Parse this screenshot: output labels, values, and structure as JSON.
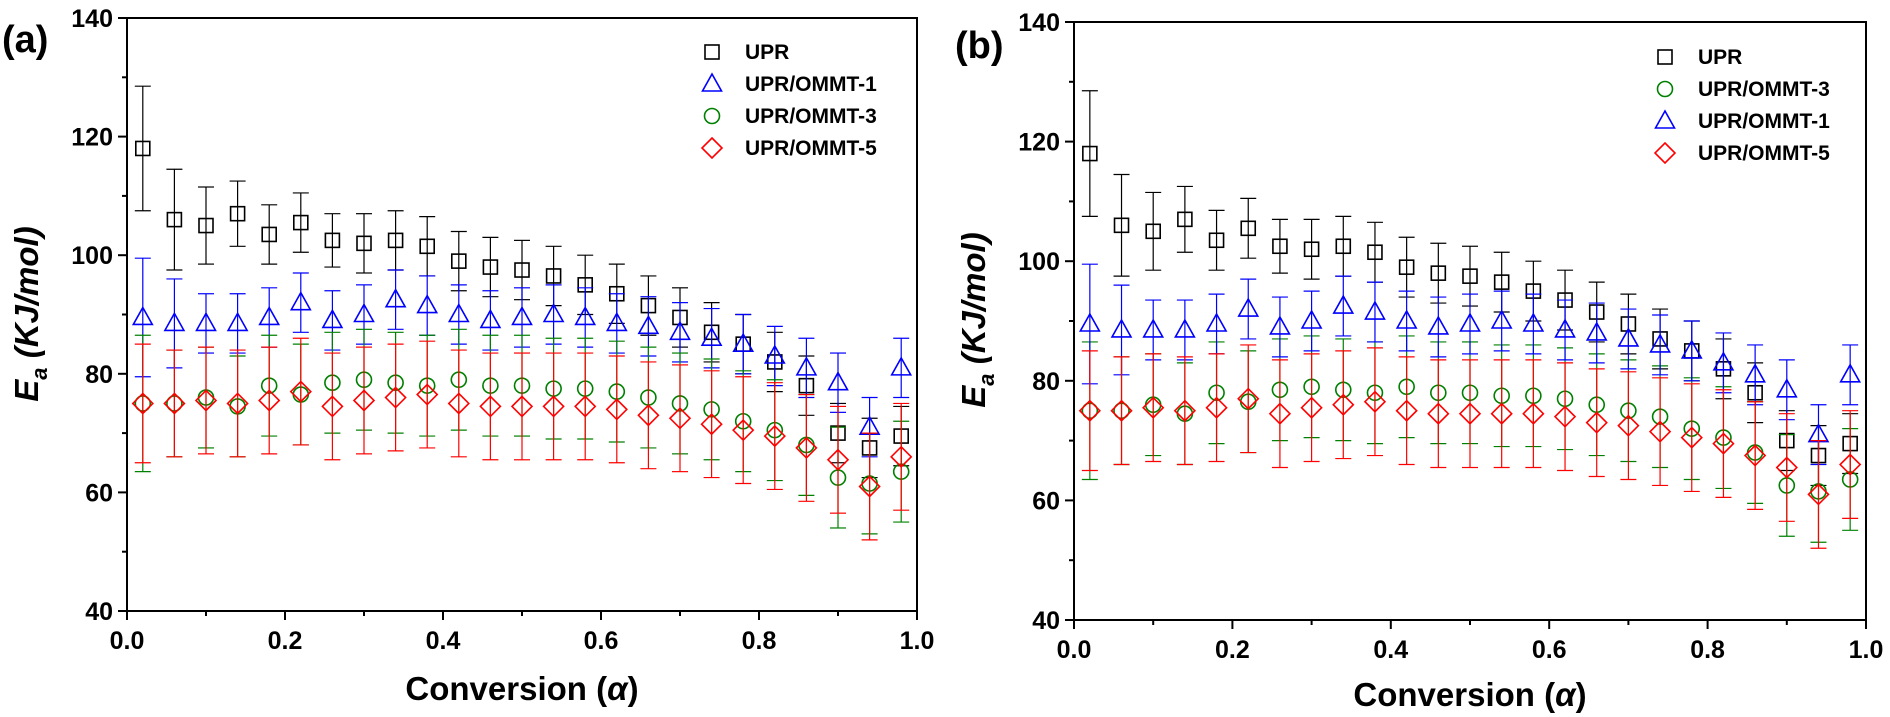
{
  "chart_data": [
    {
      "type": "scatter",
      "panel_label": "(a)",
      "xlabel": "Conversion (α)",
      "ylabel": "Ea (KJ/mol)",
      "xlim": [
        0,
        1
      ],
      "ylim": [
        40,
        140
      ],
      "xticks": [
        0.0,
        0.2,
        0.4,
        0.6,
        0.8,
        1.0
      ],
      "xtick_labels": [
        "0.0",
        "0.2",
        "0.4",
        "0.6",
        "0.8",
        "1.0"
      ],
      "yticks": [
        40,
        60,
        80,
        100,
        120,
        140
      ],
      "ytick_labels": [
        "40",
        "60",
        "80",
        "100",
        "120",
        "140"
      ],
      "grid": false,
      "legend": "top-right",
      "x": [
        0.02,
        0.06,
        0.1,
        0.14,
        0.18,
        0.22,
        0.26,
        0.3,
        0.34,
        0.38,
        0.42,
        0.46,
        0.5,
        0.54,
        0.58,
        0.62,
        0.66,
        0.7,
        0.74,
        0.78,
        0.82,
        0.86,
        0.9,
        0.94,
        0.98
      ],
      "series": [
        {
          "name": "UPR",
          "marker": "square",
          "color": "#000000",
          "values": [
            118,
            106,
            105,
            107,
            103.5,
            105.5,
            102.5,
            102,
            102.5,
            101.5,
            99,
            98,
            97.5,
            96.5,
            95,
            93.5,
            91.5,
            89.5,
            87,
            85,
            82,
            78,
            70,
            67.5,
            69.5
          ],
          "errors": [
            10.5,
            8.5,
            6.5,
            5.5,
            5,
            5,
            4.5,
            5,
            5,
            5,
            5,
            5,
            5,
            5,
            5,
            5,
            5,
            5,
            5,
            5,
            5,
            5,
            5,
            5,
            5
          ]
        },
        {
          "name": "UPR/OMMT-1",
          "marker": "triangle",
          "color": "#0000ff",
          "values": [
            89.5,
            88.5,
            88.5,
            88.5,
            89.5,
            92,
            89,
            90,
            92.5,
            91.5,
            90,
            89,
            89.5,
            90,
            89.5,
            88.5,
            88,
            87,
            86,
            85,
            83,
            81,
            78.5,
            71,
            81
          ],
          "errors": [
            10,
            7.5,
            5,
            5,
            5,
            5,
            5,
            5,
            5,
            5,
            5,
            5,
            5,
            5,
            5,
            5,
            5,
            5,
            5,
            5,
            5,
            5,
            5,
            5,
            5
          ]
        },
        {
          "name": "UPR/OMMT-3",
          "marker": "circle",
          "color": "#008000",
          "values": [
            75,
            75,
            76,
            74.5,
            78,
            76.5,
            78.5,
            79,
            78.5,
            78,
            79,
            78,
            78,
            77.5,
            77.5,
            77,
            76,
            75,
            74,
            72,
            70.5,
            68,
            62.5,
            61.5,
            63.5
          ],
          "errors": [
            11.5,
            9,
            8.5,
            8.5,
            8.5,
            8.5,
            8.5,
            8.5,
            8.5,
            8.5,
            8.5,
            8.5,
            8.5,
            8.5,
            8.5,
            8.5,
            8.5,
            8.5,
            8.5,
            8.5,
            8.5,
            8.5,
            8.5,
            8.5,
            8.5
          ]
        },
        {
          "name": "UPR/OMMT-5",
          "marker": "diamond",
          "color": "#ff0000",
          "values": [
            75,
            75,
            75.5,
            75,
            75.5,
            77,
            74.5,
            75.5,
            76,
            76.5,
            75,
            74.5,
            74.5,
            74.5,
            74.5,
            74,
            73,
            72.5,
            71.5,
            70.5,
            69.5,
            67.5,
            65.5,
            61,
            66
          ],
          "errors": [
            10,
            9,
            9,
            9,
            9,
            9,
            9,
            9,
            9,
            9,
            9,
            9,
            9,
            9,
            9,
            9,
            9,
            9,
            9,
            9,
            9,
            9,
            9,
            9,
            9
          ]
        }
      ]
    },
    {
      "type": "scatter",
      "panel_label": "(b)",
      "xlabel": "Conversion (α)",
      "ylabel": "Ea (KJ/mol)",
      "xlim": [
        0,
        1
      ],
      "ylim": [
        40,
        140
      ],
      "xticks": [
        0.0,
        0.2,
        0.4,
        0.6,
        0.8,
        1.0
      ],
      "xtick_labels": [
        "0.0",
        "0.2",
        "0.4",
        "0.6",
        "0.8",
        "1.0"
      ],
      "yticks": [
        40,
        60,
        80,
        100,
        120,
        140
      ],
      "ytick_labels": [
        "40",
        "60",
        "80",
        "100",
        "120",
        "140"
      ],
      "grid": false,
      "legend": "top-right",
      "x": [
        0.02,
        0.06,
        0.1,
        0.14,
        0.18,
        0.22,
        0.26,
        0.3,
        0.34,
        0.38,
        0.42,
        0.46,
        0.5,
        0.54,
        0.58,
        0.62,
        0.66,
        0.7,
        0.74,
        0.78,
        0.82,
        0.86,
        0.9,
        0.94,
        0.98
      ],
      "series": [
        {
          "name": "UPR",
          "marker": "square",
          "color": "#000000",
          "values": [
            118,
            106,
            105,
            107,
            103.5,
            105.5,
            102.5,
            102,
            102.5,
            101.5,
            99,
            98,
            97.5,
            96.5,
            95,
            93.5,
            91.5,
            89.5,
            87,
            85,
            82,
            78,
            70,
            67.5,
            69.5
          ],
          "errors": [
            10.5,
            8.5,
            6.5,
            5.5,
            5,
            5,
            4.5,
            5,
            5,
            5,
            5,
            5,
            5,
            5,
            5,
            5,
            5,
            5,
            5,
            5,
            5,
            5,
            5,
            5,
            5
          ]
        },
        {
          "name": "UPR/OMMT-3",
          "marker": "circle",
          "color": "#008000",
          "values": [
            75,
            75,
            76,
            74.5,
            78,
            76.5,
            78.5,
            79,
            78.5,
            78,
            79,
            78,
            78,
            77.5,
            77.5,
            77,
            76,
            75,
            74,
            72,
            70.5,
            68,
            62.5,
            61.5,
            63.5
          ],
          "errors": [
            11.5,
            9,
            8.5,
            8.5,
            8.5,
            8.5,
            8.5,
            8.5,
            8.5,
            8.5,
            8.5,
            8.5,
            8.5,
            8.5,
            8.5,
            8.5,
            8.5,
            8.5,
            8.5,
            8.5,
            8.5,
            8.5,
            8.5,
            8.5,
            8.5
          ]
        },
        {
          "name": "UPR/OMMT-1",
          "marker": "triangle",
          "color": "#0000ff",
          "values": [
            89.5,
            88.5,
            88.5,
            88.5,
            89.5,
            92,
            89,
            90,
            92.5,
            91.5,
            90,
            89,
            89.5,
            90,
            89.5,
            88.5,
            88,
            87,
            86,
            85,
            83,
            81,
            78.5,
            71,
            81
          ],
          "errors": [
            10,
            7.5,
            5,
            5,
            5,
            5,
            5,
            5,
            5,
            5,
            5,
            5,
            5,
            5,
            5,
            5,
            5,
            5,
            5,
            5,
            5,
            5,
            5,
            5,
            5
          ]
        },
        {
          "name": "UPR/OMMT-5",
          "marker": "diamond",
          "color": "#ff0000",
          "values": [
            75,
            75,
            75.5,
            75,
            75.5,
            77,
            74.5,
            75.5,
            76,
            76.5,
            75,
            74.5,
            74.5,
            74.5,
            74.5,
            74,
            73,
            72.5,
            71.5,
            70.5,
            69.5,
            67.5,
            65.5,
            61,
            66
          ],
          "errors": [
            10,
            9,
            9,
            9,
            9,
            9,
            9,
            9,
            9,
            9,
            9,
            9,
            9,
            9,
            9,
            9,
            9,
            9,
            9,
            9,
            9,
            9,
            9,
            9,
            9
          ]
        }
      ]
    }
  ]
}
